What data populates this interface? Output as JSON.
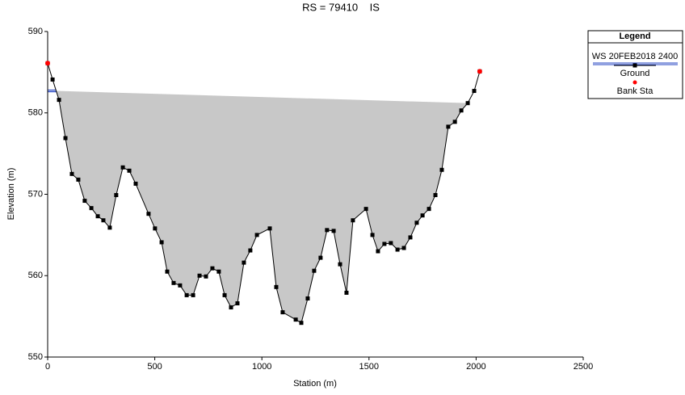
{
  "chart_data": {
    "type": "line",
    "title": "RS = 79410    IS",
    "x_label": "Station (m)",
    "y_label": "Elevation (m)",
    "xlim": [
      0,
      2500
    ],
    "xticks": [
      0,
      500,
      1000,
      1500,
      2000,
      2500
    ],
    "ylim": [
      550,
      590
    ],
    "yticks": [
      550,
      560,
      570,
      580,
      590
    ],
    "legend_title": "Legend",
    "legend_position": "upper right",
    "series": [
      {
        "name": "WS 20FEB2018 2400",
        "color": "#2040c0",
        "values": [
          582.7
        ]
      },
      {
        "name": "Ground",
        "color": "#000000",
        "x": [
          0,
          23,
          53,
          83,
          113,
          143,
          173,
          204,
          234,
          260,
          290,
          320,
          351,
          381,
          411,
          471,
          501,
          532,
          558,
          588,
          618,
          649,
          679,
          709,
          739,
          769,
          799,
          826,
          856,
          886,
          916,
          946,
          977,
          1037,
          1067,
          1097,
          1158,
          1184,
          1214,
          1244,
          1274,
          1304,
          1335,
          1365,
          1395,
          1425,
          1486,
          1516,
          1542,
          1572,
          1602,
          1633,
          1663,
          1693,
          1723,
          1750,
          1780,
          1810,
          1840,
          1870,
          1901,
          1931,
          1961,
          1991,
          2017
        ],
        "values": [
          586.1,
          584.1,
          581.6,
          576.9,
          572.5,
          571.8,
          569.2,
          568.3,
          567.3,
          566.8,
          565.9,
          569.9,
          573.3,
          572.9,
          571.3,
          567.6,
          565.8,
          564.1,
          560.5,
          559.1,
          558.8,
          557.6,
          557.6,
          560.0,
          559.9,
          560.9,
          560.5,
          557.6,
          556.1,
          556.6,
          561.6,
          563.1,
          565.0,
          565.8,
          558.6,
          555.5,
          554.6,
          554.2,
          557.2,
          560.6,
          562.2,
          565.6,
          565.5,
          561.4,
          557.9,
          566.8,
          568.2,
          565.0,
          563.0,
          563.9,
          564.0,
          563.2,
          563.4,
          564.7,
          566.5,
          567.4,
          568.2,
          569.9,
          573.0,
          578.3,
          578.9,
          580.3,
          581.2,
          582.7,
          585.1
        ]
      },
      {
        "name": "Bank Sta",
        "color": "#ff0000",
        "x": [
          0,
          2017
        ],
        "values": [
          586.1,
          585.1
        ]
      }
    ]
  }
}
